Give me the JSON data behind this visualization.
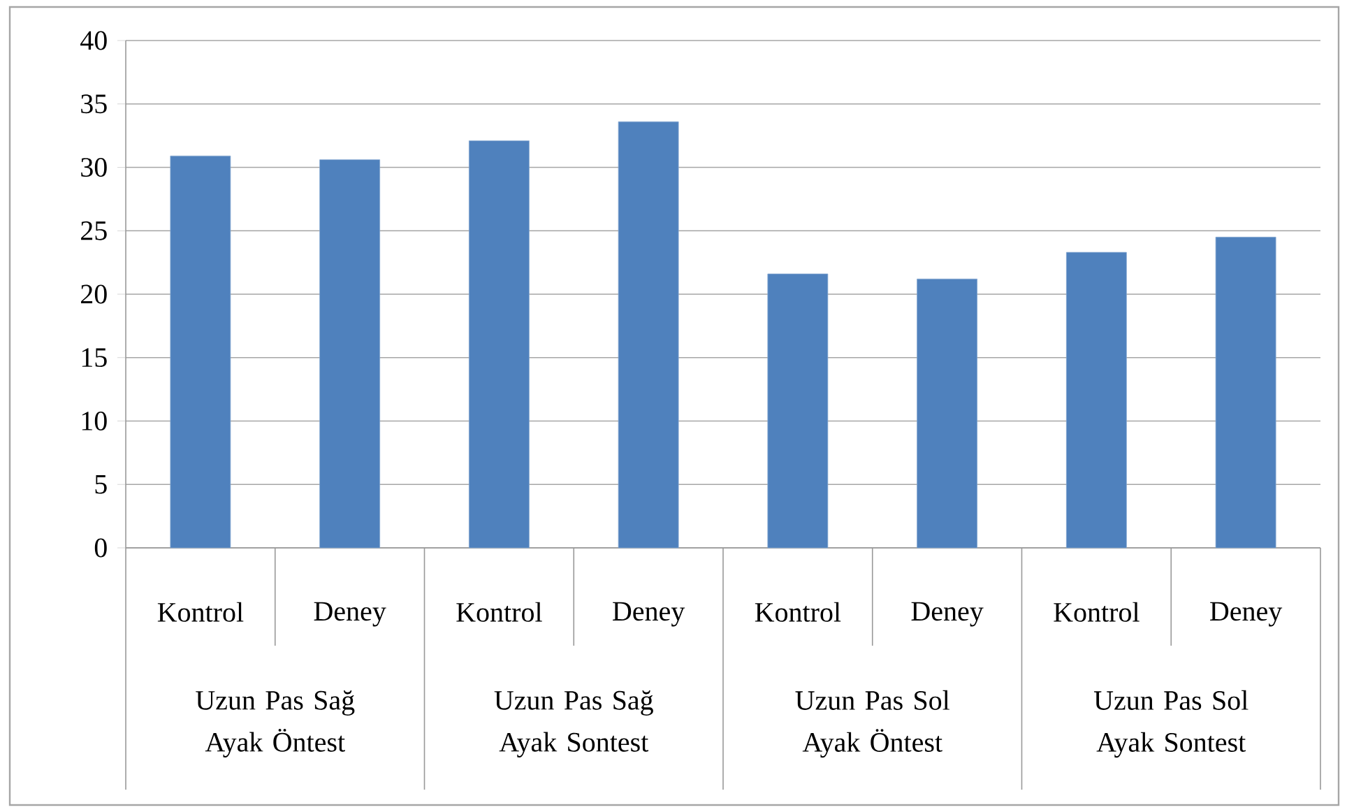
{
  "chart_data": {
    "type": "bar",
    "categories": [
      "Kontrol",
      "Deney",
      "Kontrol",
      "Deney",
      "Kontrol",
      "Deney",
      "Kontrol",
      "Deney"
    ],
    "values": [
      30.9,
      30.6,
      32.1,
      33.6,
      21.6,
      21.2,
      23.3,
      24.5
    ],
    "color": "#4f81bd",
    "ylim": [
      0,
      40
    ],
    "yticks": [
      0,
      5,
      10,
      15,
      20,
      25,
      30,
      35,
      40
    ],
    "grid": "y",
    "annotations": [
      "Uzun Pas Sağ Ayak Öntest",
      "Uzun Pas Sağ Ayak Sontest",
      "Uzun Pas Sol Ayak Öntest",
      "Uzun Pas Sol Ayak Sontest"
    ]
  }
}
